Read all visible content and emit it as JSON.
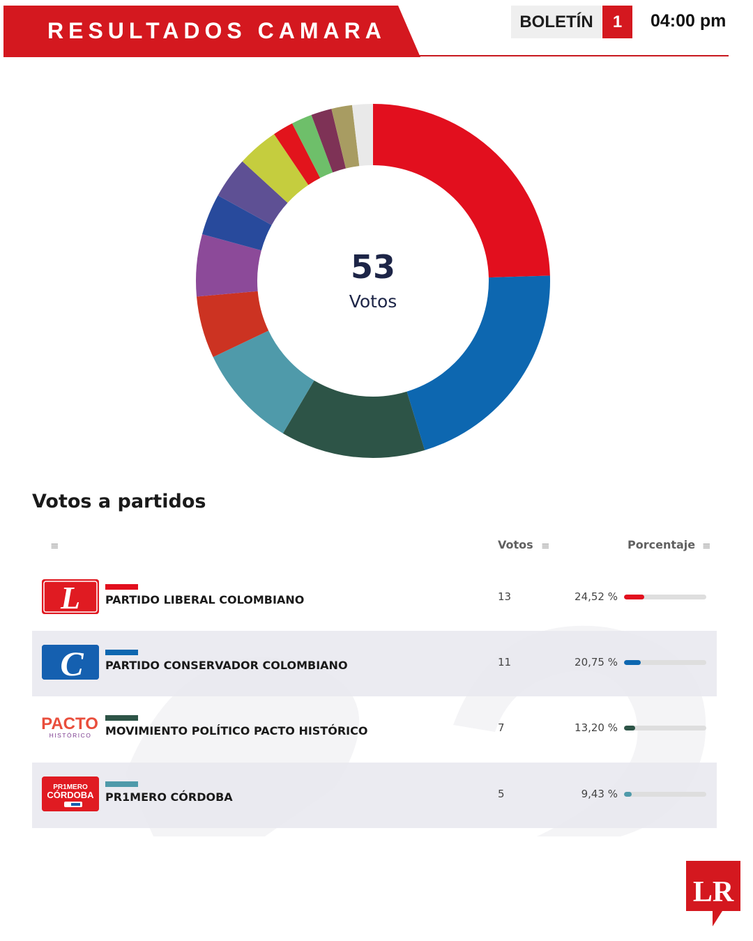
{
  "header": {
    "title": "RESULTADOS CAMARA",
    "boletin_label": "BOLETÍN",
    "boletin_number": "1",
    "time": "04:00 pm"
  },
  "colors": {
    "brand_red": "#d4181f",
    "liberal": "#e20f1e",
    "conservador": "#0d67b0",
    "pacto": "#2d5447",
    "primero_cordoba": "#4f9aaa"
  },
  "chart_data": {
    "type": "pie",
    "center_value": "53",
    "center_label": "Votos",
    "slices": [
      {
        "value": 13,
        "color": "#e20f1e"
      },
      {
        "value": 11,
        "color": "#0d67b0"
      },
      {
        "value": 7,
        "color": "#2d5447"
      },
      {
        "value": 5,
        "color": "#4f9aaa"
      },
      {
        "value": 3,
        "color": "#cc3322"
      },
      {
        "value": 3,
        "color": "#8c4a99"
      },
      {
        "value": 2,
        "color": "#284a9c"
      },
      {
        "value": 2,
        "color": "#5e5094"
      },
      {
        "value": 2,
        "color": "#c5cd3e"
      },
      {
        "value": 1,
        "color": "#e2141c"
      },
      {
        "value": 1,
        "color": "#6ebf6a"
      },
      {
        "value": 1,
        "color": "#7e3256"
      },
      {
        "value": 1,
        "color": "#a89c62"
      },
      {
        "value": 1,
        "color": "#e9e9e9"
      }
    ]
  },
  "table": {
    "title": "Votos a partidos",
    "columns": {
      "votes": "Votos",
      "percentage": "Porcentaje",
      "menu_icon": "hamburger-icon"
    },
    "rows": [
      {
        "logo": "L",
        "name": "PARTIDO LIBERAL COLOMBIANO",
        "votes": "13",
        "percentage": "24,52 %",
        "pct_value": 24.52,
        "color": "#e20f1e",
        "logo_bg": "#e01b22"
      },
      {
        "logo": "C",
        "name": "PARTIDO CONSERVADOR COLOMBIANO",
        "votes": "11",
        "percentage": "20,75 %",
        "pct_value": 20.75,
        "color": "#0d67b0",
        "logo_bg": "#1560b0"
      },
      {
        "logo": "PACTO",
        "logo_sub": "HISTÓRICO",
        "name": "MOVIMIENTO POLÍTICO PACTO HISTÓRICO",
        "votes": "7",
        "percentage": "13,20 %",
        "pct_value": 13.2,
        "color": "#2d5447"
      },
      {
        "logo": "PR1MERO",
        "logo_sub": "CÓRDOBA",
        "name": "PR1MERO CÓRDOBA",
        "votes": "5",
        "percentage": "9,43 %",
        "pct_value": 9.43,
        "color": "#4f9aaa",
        "logo_bg": "#e01b22"
      }
    ]
  },
  "brand": {
    "logo_text": "LR"
  }
}
